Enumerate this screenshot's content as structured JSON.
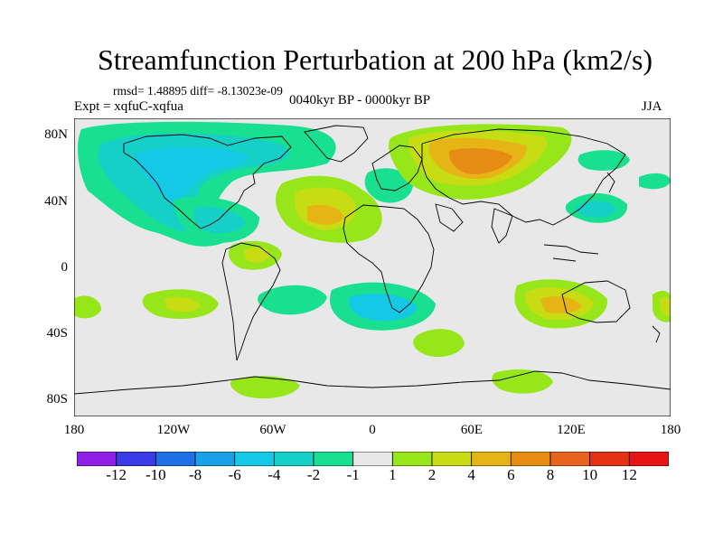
{
  "title": "Streamfunction Perturbation at 200 hPa (km2/s)",
  "stats": "rmsd= 1.48895 diff= -8.13023e-09",
  "expt": "Expt = xqfuC-xqfua",
  "period": "0040kyr BP - 0000kyr BP",
  "season": "JJA",
  "lat_labels": [
    "80N",
    "40N",
    "0",
    "40S",
    "80S"
  ],
  "lon_labels": [
    "180",
    "120W",
    "60W",
    "0",
    "60E",
    "120E",
    "180"
  ],
  "colorbar": {
    "labels": [
      "-12",
      "-10",
      "-8",
      "-6",
      "-4",
      "-2",
      "-1",
      "1",
      "2",
      "4",
      "6",
      "8",
      "10",
      "12"
    ],
    "colors": [
      "#8f1ee6",
      "#3a3ae6",
      "#1f6fe6",
      "#1aa0e6",
      "#14c8e6",
      "#16d0c8",
      "#18e090",
      "#e8e8e8",
      "#96e61a",
      "#c8dc14",
      "#e6b414",
      "#e68c14",
      "#e6641e",
      "#e63214",
      "#e61414"
    ]
  },
  "colors": {
    "land_outline": "#000000",
    "background": "#e8e8e8"
  }
}
